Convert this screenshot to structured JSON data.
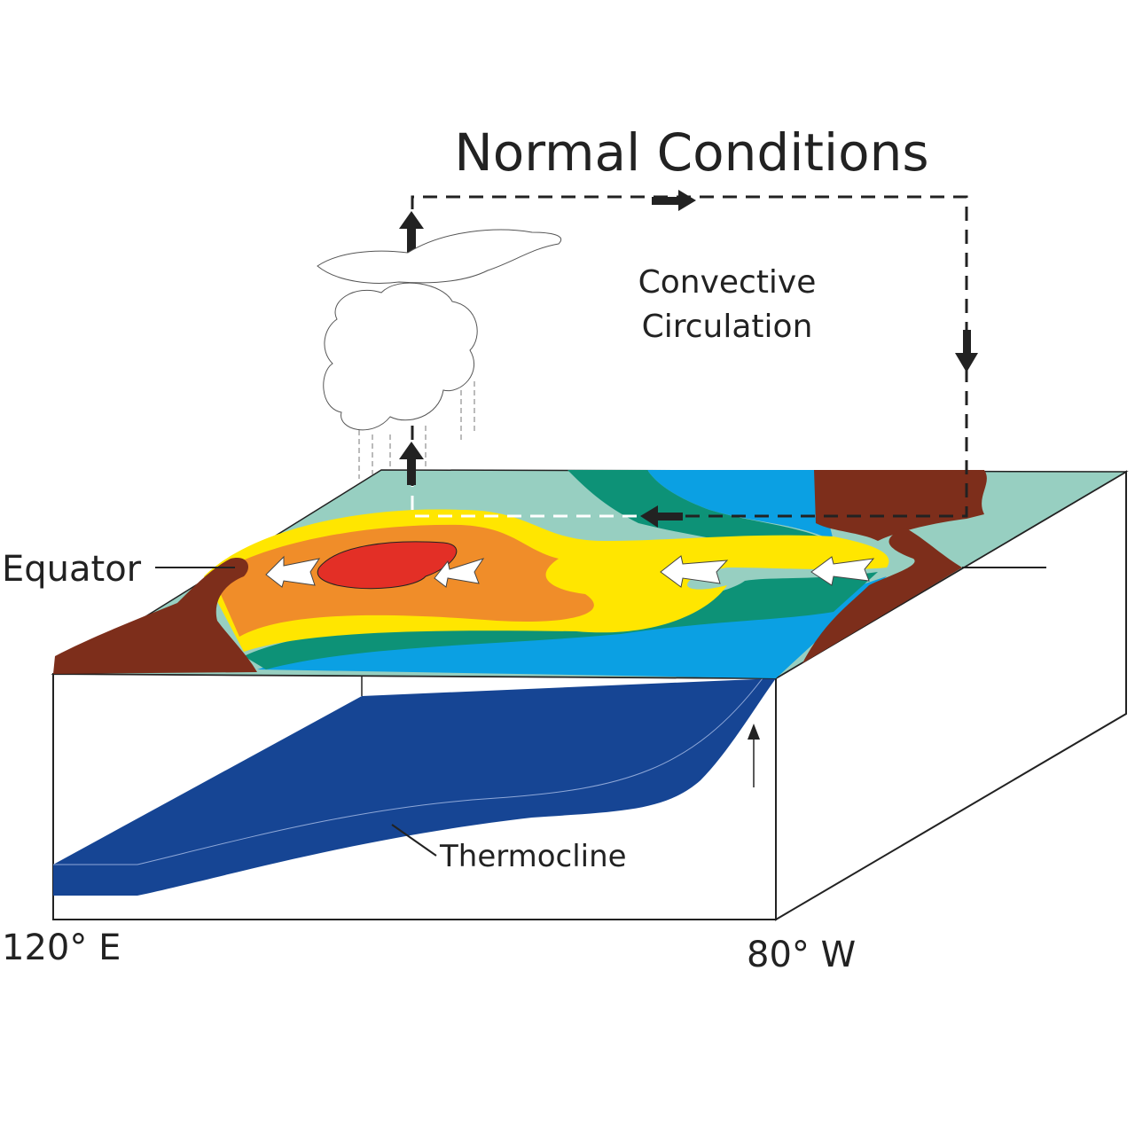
{
  "title": "Normal Conditions",
  "circulation_label": [
    "Convective",
    "Circulation"
  ],
  "equator_label": "Equator",
  "thermocline_label": "Thermocline",
  "west_longitude": "120° E",
  "east_longitude": "80° W"
}
